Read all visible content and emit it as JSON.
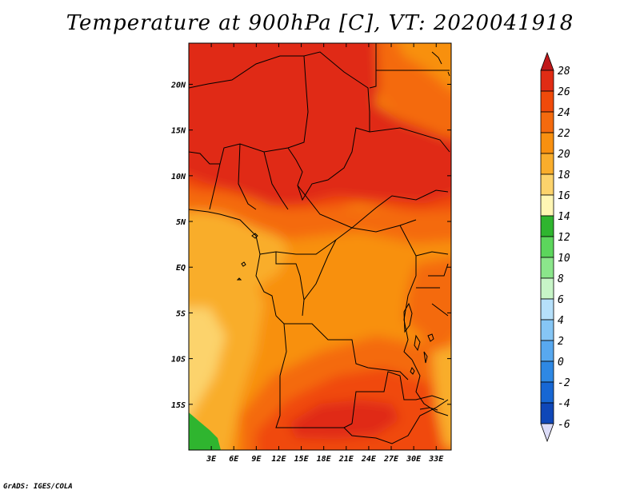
{
  "title": "Temperature at 900hPa [C], VT: 2020041918",
  "credit": "GrADS: IGES/COLA",
  "map": {
    "lon_range": [
      0,
      35
    ],
    "lat_range": [
      -20,
      24.5
    ],
    "lon_ticks": [
      {
        "lon": 3,
        "label": "3E"
      },
      {
        "lon": 6,
        "label": "6E"
      },
      {
        "lon": 9,
        "label": "9E"
      },
      {
        "lon": 12,
        "label": "12E"
      },
      {
        "lon": 15,
        "label": "15E"
      },
      {
        "lon": 18,
        "label": "18E"
      },
      {
        "lon": 21,
        "label": "21E"
      },
      {
        "lon": 24,
        "label": "24E"
      },
      {
        "lon": 27,
        "label": "27E"
      },
      {
        "lon": 30,
        "label": "30E"
      },
      {
        "lon": 33,
        "label": "33E"
      }
    ],
    "lat_ticks": [
      {
        "lat": 20,
        "label": "20N"
      },
      {
        "lat": 15,
        "label": "15N"
      },
      {
        "lat": 10,
        "label": "10N"
      },
      {
        "lat": 5,
        "label": "5N"
      },
      {
        "lat": 0,
        "label": "EQ"
      },
      {
        "lat": -5,
        "label": "5S"
      },
      {
        "lat": -10,
        "label": "10S"
      },
      {
        "lat": -15,
        "label": "15S"
      }
    ]
  },
  "colorbar": {
    "levels": [
      {
        "label": "28",
        "color": "#e02c14"
      },
      {
        "label": "26",
        "color": "#f04a0a"
      },
      {
        "label": "24",
        "color": "#f46a0e"
      },
      {
        "label": "22",
        "color": "#f89010"
      },
      {
        "label": "20",
        "color": "#f9ad2c"
      },
      {
        "label": "18",
        "color": "#fcd36c"
      },
      {
        "label": "16",
        "color": "#fff6b4"
      },
      {
        "label": "14",
        "color": "#2fb52f"
      },
      {
        "label": "12",
        "color": "#5cd65c"
      },
      {
        "label": "10",
        "color": "#8be68b"
      },
      {
        "label": "8",
        "color": "#c7f5c7"
      },
      {
        "label": "6",
        "color": "#b6e0fa"
      },
      {
        "label": "4",
        "color": "#86c6f5"
      },
      {
        "label": "2",
        "color": "#58a8ef"
      },
      {
        "label": "0",
        "color": "#2e88e4"
      },
      {
        "label": "-2",
        "color": "#1767d4"
      },
      {
        "label": "-4",
        "color": "#0f47b8"
      },
      {
        "label": "-6",
        "color": "#0a1a88"
      }
    ],
    "top_cap_color": "#c0181a",
    "bottom_cap_color": "#dcdcf8"
  },
  "field_regions": [
    {
      "name": "base",
      "level": "22"
    },
    {
      "name": "sw-coast-cool",
      "level": "18"
    },
    {
      "name": "sw-coast-mild",
      "level": "20"
    },
    {
      "name": "angola-warm",
      "level": "24"
    },
    {
      "name": "south-hot",
      "level": "26"
    },
    {
      "name": "zambia-core",
      "level": "28"
    },
    {
      "name": "west-cool-coast",
      "level": "20"
    },
    {
      "name": "gulf-warm",
      "level": "24"
    },
    {
      "name": "sahel-warm",
      "level": "26"
    },
    {
      "name": "sahara-hot",
      "level": "28"
    },
    {
      "name": "northeast-warm",
      "level": "24"
    },
    {
      "name": "northeast-mild",
      "level": "22"
    },
    {
      "name": "east-africa-warm",
      "level": "24"
    },
    {
      "name": "se-corner",
      "level": "20"
    },
    {
      "name": "green-patch",
      "level": "14"
    }
  ]
}
